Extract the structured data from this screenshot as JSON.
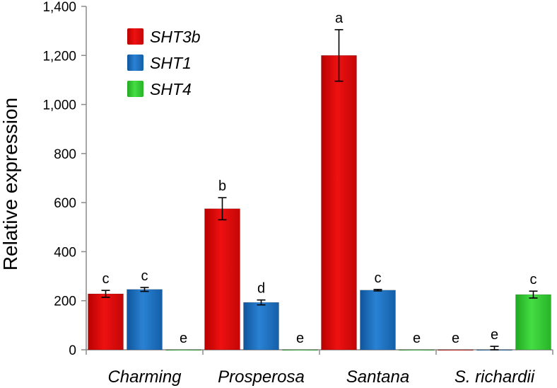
{
  "chart_data": {
    "type": "bar",
    "title": "",
    "xlabel": "",
    "ylabel": "Relative expression",
    "ylim": [
      0,
      1400
    ],
    "yticks": [
      0,
      200,
      400,
      600,
      800,
      1000,
      1200,
      1400
    ],
    "ytick_labels": [
      "0",
      "200",
      "400",
      "600",
      "800",
      "1,000",
      "1,200",
      "1,400"
    ],
    "categories": [
      "Charming",
      "Prosperosa",
      "Santana",
      "S. richardii"
    ],
    "legend_position": "top-left",
    "grid": false,
    "series": [
      {
        "name": "SHT3b",
        "color": "#ee1111",
        "values": [
          228,
          575,
          1200,
          0
        ],
        "errors": [
          14,
          45,
          105,
          0
        ],
        "labels": [
          "c",
          "b",
          "a",
          "e"
        ]
      },
      {
        "name": "SHT1",
        "color": "#1a72c6",
        "values": [
          246,
          193,
          243,
          0
        ],
        "errors": [
          8,
          10,
          3,
          14
        ],
        "labels": [
          "c",
          "d",
          "c",
          "e"
        ]
      },
      {
        "name": "SHT4",
        "color": "#33cc33",
        "values": [
          0,
          0,
          0,
          225
        ],
        "errors": [
          0,
          0,
          0,
          14
        ],
        "labels": [
          "e",
          "e",
          "e",
          "c"
        ]
      }
    ]
  }
}
